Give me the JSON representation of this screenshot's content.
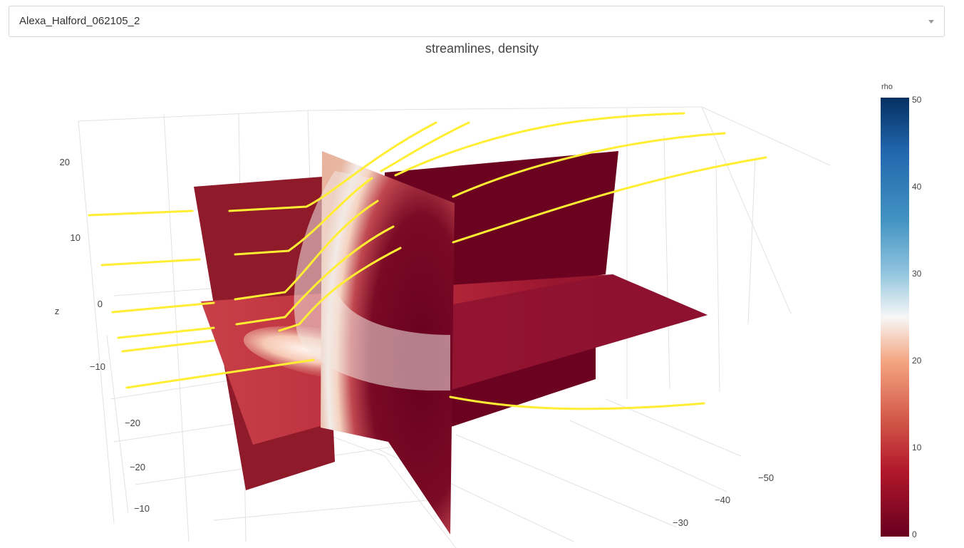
{
  "selector": {
    "value": "Alexa_Halford_062105_2"
  },
  "chart_data": {
    "type": "3d-surface-streamlines",
    "title": "streamlines, density",
    "z_axis": {
      "label": "z",
      "ticks": [
        "20",
        "10",
        "0",
        "−10"
      ]
    },
    "left_axis": {
      "ticks": [
        "−20",
        "−20",
        "−10"
      ]
    },
    "x_axis": {
      "ticks": [
        "−50",
        "−40",
        "−30"
      ]
    },
    "colorbar": {
      "title": "rho",
      "range": [
        0,
        50
      ],
      "ticks": [
        "50",
        "40",
        "30",
        "20",
        "10",
        "0"
      ],
      "colorscale": [
        "#053061",
        "#2166ac",
        "#4393c3",
        "#92c5de",
        "#f7f7f7",
        "#f4a582",
        "#d6604d",
        "#b2182b",
        "#67001f"
      ]
    },
    "slices": [
      {
        "plane": "y-z",
        "description_value": "rho"
      },
      {
        "plane": "x-z",
        "description_value": "rho"
      },
      {
        "plane": "x-y",
        "description_value": "rho"
      }
    ],
    "streamlines": {
      "color": "#ffee33",
      "count": 14
    }
  }
}
